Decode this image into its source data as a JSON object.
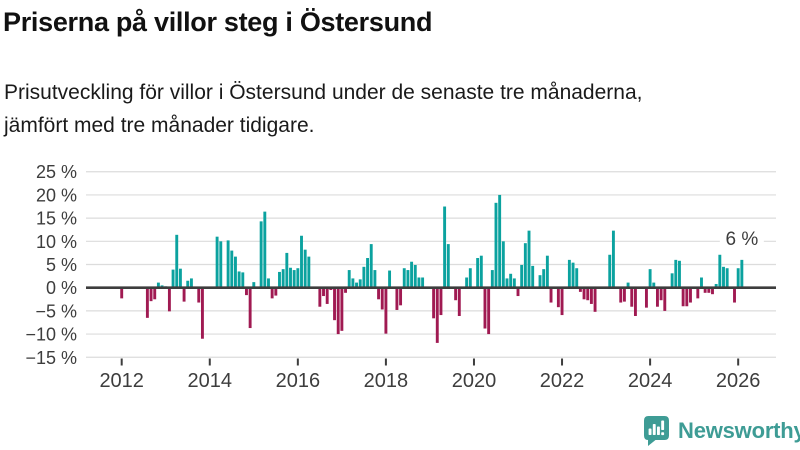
{
  "header": {
    "title": "Priserna på villor steg i Östersund",
    "subtitle_line1": "Prisutveckling för villor i Östersund under de senaste tre månaderna,",
    "subtitle_line2": "jämfört med tre månader tidigare."
  },
  "footer": {
    "brand": "Newsworthy",
    "brand_color": "#3E9C95"
  },
  "chart_data": {
    "type": "bar",
    "unit": "%",
    "frequency": "monthly",
    "start_month": "2012-01",
    "end_month": "2026-02",
    "values": [
      -2.3,
      0,
      0,
      0,
      0,
      0,
      0,
      -6.5,
      -2.9,
      -2.5,
      1.1,
      0.5,
      0.3,
      -5.1,
      3.9,
      11.4,
      4.1,
      -3.0,
      1.5,
      2.0,
      0,
      -3.2,
      -11.0,
      0,
      0,
      0,
      11.0,
      10.0,
      0,
      10.2,
      8.0,
      6.7,
      3.5,
      3.3,
      -1.6,
      -8.7,
      1.2,
      0,
      14.3,
      16.4,
      2.0,
      -2.3,
      -1.7,
      3.4,
      4.0,
      7.5,
      4.3,
      3.8,
      4.2,
      11.2,
      8.2,
      6.7,
      0,
      0,
      -4.1,
      -1.8,
      -3.5,
      -0.5,
      -7.0,
      -10.0,
      -9.3,
      -1.1,
      3.8,
      2.0,
      1.1,
      1.8,
      4.5,
      6.4,
      9.4,
      3.8,
      -2.5,
      -4.7,
      -9.9,
      3.7,
      0,
      -4.8,
      -3.8,
      4.2,
      3.8,
      5.6,
      4.9,
      2.2,
      2.2,
      0,
      0,
      -6.6,
      -11.9,
      -5.9,
      17.5,
      9.4,
      0,
      -2.7,
      -6.1,
      0,
      2.2,
      4.2,
      0,
      6.4,
      6.9,
      -8.8,
      -10.0,
      3.8,
      18.3,
      20.0,
      10.0,
      2.0,
      3.0,
      2.0,
      -1.8,
      4.9,
      9.6,
      12.3,
      4.7,
      0,
      2.7,
      4.0,
      6.9,
      -3.2,
      0,
      -4.2,
      -5.9,
      0,
      6.0,
      5.4,
      4.2,
      -0.9,
      -2.5,
      -2.7,
      -3.5,
      -5.2,
      0,
      0,
      0,
      7.1,
      12.3,
      0,
      -3.2,
      -3.0,
      1.1,
      -4.1,
      -6.1,
      0,
      0,
      -4.3,
      4.0,
      1.1,
      -4.1,
      -2.7,
      -5.0,
      0,
      3.1,
      6.0,
      5.8,
      -4.0,
      -4.0,
      -3.2,
      0,
      -2.3,
      2.2,
      -1.1,
      -1.1,
      -1.4,
      0.8,
      7.1,
      4.5,
      4.2,
      0,
      -3.2,
      4.2,
      6.0
    ],
    "y_ticks": [
      {
        "value": 25,
        "label": "25 %"
      },
      {
        "value": 20,
        "label": "20 %"
      },
      {
        "value": 15,
        "label": "15 %"
      },
      {
        "value": 10,
        "label": "10 %"
      },
      {
        "value": 5,
        "label": "5 %"
      },
      {
        "value": 0,
        "label": "0 %"
      },
      {
        "value": -5,
        "label": "−5 %"
      },
      {
        "value": -10,
        "label": "−10 %"
      },
      {
        "value": -15,
        "label": "−15 %"
      }
    ],
    "x_ticks": [
      {
        "year": 2012,
        "label": "2012"
      },
      {
        "year": 2014,
        "label": "2014"
      },
      {
        "year": 2016,
        "label": "2016"
      },
      {
        "year": 2018,
        "label": "2018"
      },
      {
        "year": 2020,
        "label": "2020"
      },
      {
        "year": 2022,
        "label": "2022"
      },
      {
        "year": 2024,
        "label": "2024"
      },
      {
        "year": 2026,
        "label": "2026"
      }
    ],
    "annotation": {
      "label": "6 %",
      "month": "2026-02",
      "value": 6
    },
    "grid": true,
    "legend": null,
    "colors": {
      "positive": "#0BA29F",
      "negative": "#A01A52",
      "zero_line": "#3D3D3D",
      "grid": "#DCDCDC",
      "tick_text": "#3D3D3D",
      "annotation_text": "#3D3D3D"
    }
  }
}
